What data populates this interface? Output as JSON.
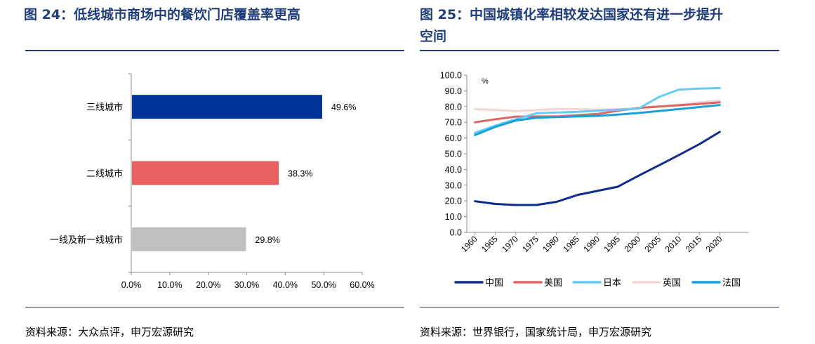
{
  "left_figure": {
    "title": "图 24：低线城市商场中的餐饮门店覆盖率更高",
    "source": "资料来源：大众点评，申万宏源研究"
  },
  "right_figure": {
    "title_line1": "图 25：中国城镇化率相较发达国家还有进一步提升",
    "title_line2": "空间",
    "source": "资料来源：世界银行，国家统计局，申万宏源研究"
  },
  "chart_data": [
    {
      "type": "bar",
      "orientation": "horizontal",
      "categories": [
        "三线城市",
        "二线城市",
        "一线及新一线城市"
      ],
      "values": [
        49.6,
        38.3,
        29.8
      ],
      "value_labels": [
        "49.6%",
        "38.3%",
        "29.8%"
      ],
      "colors": [
        "#003399",
        "#E86060",
        "#BFBFBF"
      ],
      "xlim": [
        0,
        60
      ],
      "xticks": [
        "0.0%",
        "10.0%",
        "20.0%",
        "30.0%",
        "40.0%",
        "50.0%",
        "60.0%"
      ],
      "grid": false
    },
    {
      "type": "line",
      "unit_label": "%",
      "ylim": [
        0,
        100
      ],
      "yticks": [
        "0.0",
        "10.0",
        "20.0",
        "30.0",
        "40.0",
        "50.0",
        "60.0",
        "70.0",
        "80.0",
        "90.0",
        "100.0"
      ],
      "x": [
        "1960",
        "1965",
        "1970",
        "1975",
        "1980",
        "1985",
        "1990",
        "1995",
        "2000",
        "2005",
        "2010",
        "2015",
        "2020"
      ],
      "legend_position": "bottom",
      "grid": false,
      "series": [
        {
          "name": "中国",
          "color": "#0D2C8C",
          "values": [
            19.8,
            18.1,
            17.4,
            17.4,
            19.4,
            23.7,
            26.4,
            29.0,
            35.9,
            42.5,
            49.2,
            56.1,
            63.9
          ]
        },
        {
          "name": "美国",
          "color": "#E06666",
          "values": [
            70.0,
            71.9,
            73.6,
            73.7,
            73.7,
            74.5,
            75.3,
            77.3,
            79.1,
            80.0,
            80.8,
            81.7,
            82.7
          ]
        },
        {
          "name": "日本",
          "color": "#66CCF5",
          "values": [
            63.3,
            67.9,
            71.9,
            75.7,
            76.2,
            76.7,
            77.3,
            78.0,
            78.6,
            86.0,
            90.8,
            91.4,
            91.8
          ]
        },
        {
          "name": "英国",
          "color": "#F5D5D5",
          "values": [
            78.4,
            77.8,
            77.1,
            77.7,
            78.5,
            78.4,
            78.1,
            78.4,
            78.7,
            79.9,
            81.3,
            82.6,
            83.9
          ]
        },
        {
          "name": "法国",
          "color": "#1AA0D8",
          "values": [
            61.9,
            67.1,
            71.1,
            72.9,
            73.3,
            73.7,
            74.1,
            74.9,
            75.9,
            77.1,
            78.4,
            79.7,
            81.0
          ]
        }
      ]
    }
  ]
}
